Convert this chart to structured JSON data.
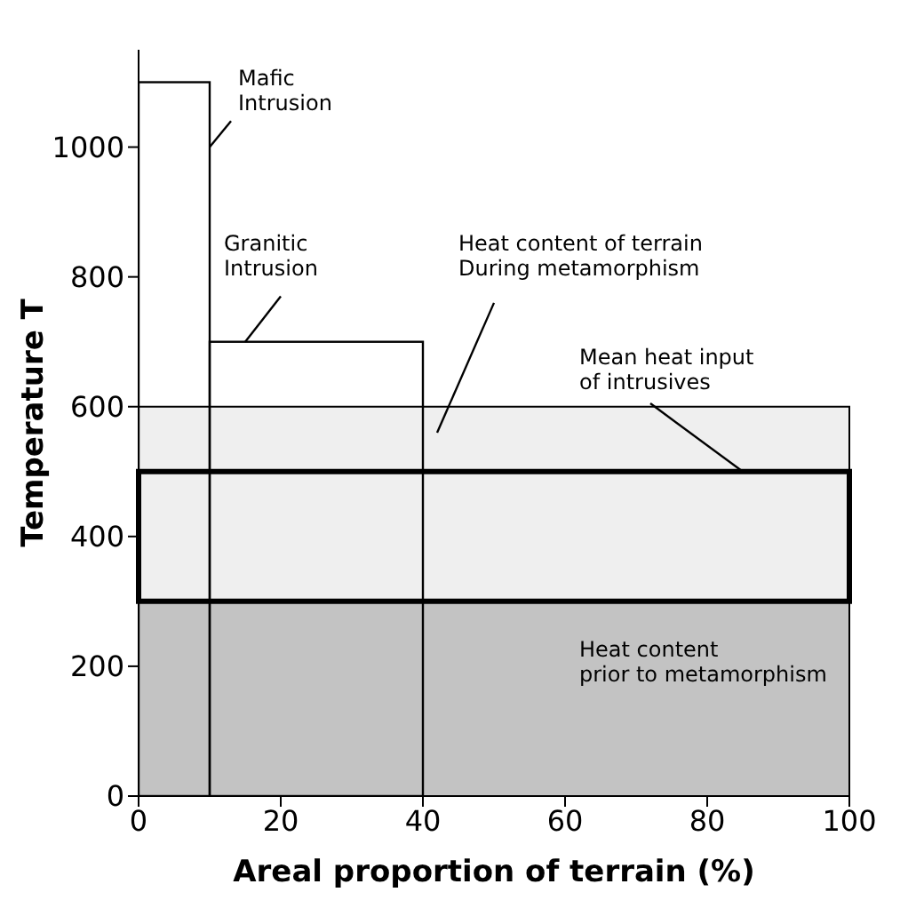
{
  "chart_data": {
    "type": "histogram",
    "xlabel": "Areal proportion of terrain (%)",
    "ylabel": "Temperature T",
    "bins": [
      0,
      10,
      40
    ],
    "values": [
      1100,
      700
    ],
    "color": "#000000",
    "xlim": [
      0,
      100
    ],
    "ylim": [
      0,
      1150
    ],
    "xticks": [
      0,
      20,
      40,
      60,
      80,
      100
    ],
    "yticks": [
      0,
      200,
      400,
      600,
      800,
      1000
    ],
    "bands": [
      {
        "axis": "y",
        "from": 0,
        "to": 300,
        "label": "Heat content\nprior to metamorphism",
        "color": "#c3c3c3"
      },
      {
        "axis": "y",
        "from": 300,
        "to": 600,
        "label": "Heat content of terrain\nDuring metamorphism",
        "color": "#efefef"
      },
      {
        "axis": "y",
        "from": 300,
        "to": 500,
        "label": "Mean heat input\nof intrusives",
        "color": "#efefef"
      }
    ],
    "annotations": [
      {
        "text": "Mafic\nIntrusion",
        "x": 10,
        "y": 1000
      },
      {
        "text": "Granitic\nIntrusion",
        "x": 15,
        "y": 700
      }
    ],
    "grid": false
  }
}
